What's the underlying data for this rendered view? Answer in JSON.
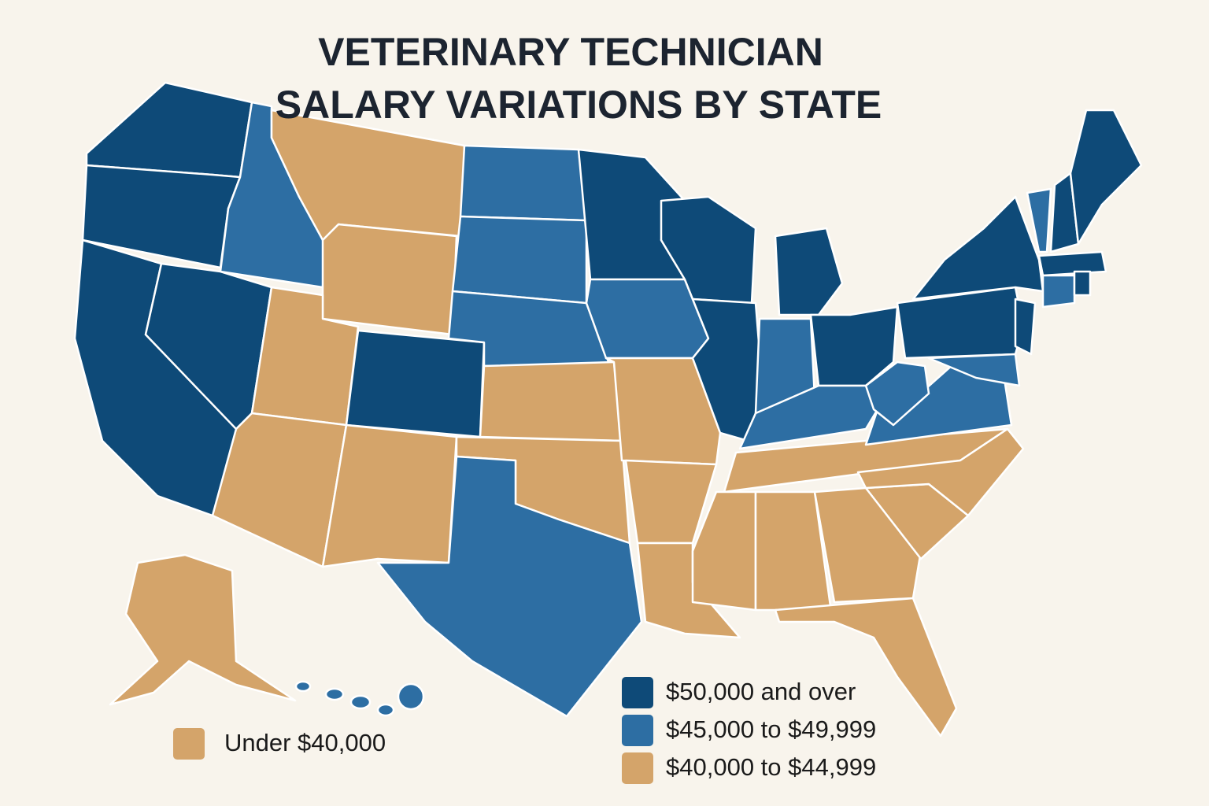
{
  "title": [
    "VETERINARY TECHNICIAN",
    "SALARY VARIATIONS BY STATE"
  ],
  "legend": [
    {
      "label": "$50,000 and over",
      "color": "#0e4a78"
    },
    {
      "label": "$45,000 to $49,999",
      "color": "#2d6ea3"
    },
    {
      "label": "$40,000 to $44,999",
      "color": "#d4a46a"
    },
    {
      "label": "Under $40,000",
      "color": "#d4a46a"
    }
  ]
}
